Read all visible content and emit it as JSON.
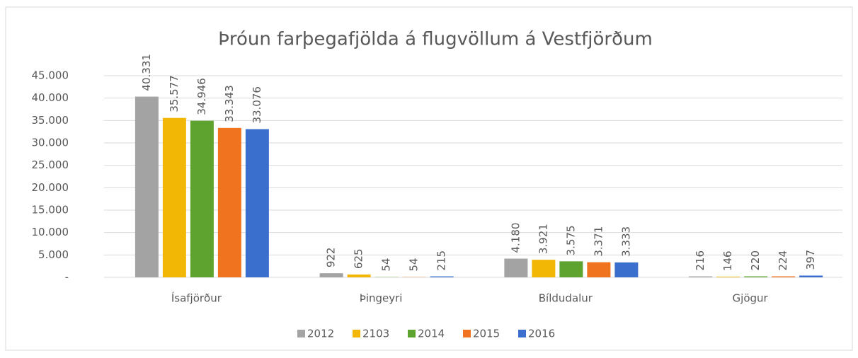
{
  "chart_data": {
    "type": "bar",
    "title": "Þróun farþegafjölda á flugvöllum á Vestfjörðum",
    "categories": [
      "Ísafjörður",
      "Þingeyri",
      "Bíldudalur",
      "Gjögur"
    ],
    "series": [
      {
        "name": "2012",
        "color": "#a3a3a3",
        "values": [
          40331,
          922,
          4180,
          216
        ],
        "value_labels": [
          "40.331",
          "922",
          "4.180",
          "216"
        ]
      },
      {
        "name": "2103",
        "color": "#f2b705",
        "values": [
          35577,
          625,
          3921,
          146
        ],
        "value_labels": [
          "35.577",
          "625",
          "3.921",
          "146"
        ]
      },
      {
        "name": "2014",
        "color": "#5ea22f",
        "values": [
          34946,
          54,
          3575,
          220
        ],
        "value_labels": [
          "34.946",
          "54",
          "3.575",
          "220"
        ]
      },
      {
        "name": "2015",
        "color": "#f0731f",
        "values": [
          33343,
          54,
          3371,
          224
        ],
        "value_labels": [
          "33.343",
          "54",
          "3.371",
          "224"
        ]
      },
      {
        "name": "2016",
        "color": "#3b6fce",
        "values": [
          33076,
          215,
          3333,
          397
        ],
        "value_labels": [
          "33.076",
          "215",
          "3.333",
          "397"
        ]
      }
    ],
    "ylim": [
      0,
      45000
    ],
    "yticks": [
      {
        "value": 0,
        "label": "-"
      },
      {
        "value": 5000,
        "label": "5.000"
      },
      {
        "value": 10000,
        "label": "10.000"
      },
      {
        "value": 15000,
        "label": "15.000"
      },
      {
        "value": 20000,
        "label": "20.000"
      },
      {
        "value": 25000,
        "label": "25.000"
      },
      {
        "value": 30000,
        "label": "30.000"
      },
      {
        "value": 35000,
        "label": "35.000"
      },
      {
        "value": 40000,
        "label": "40.000"
      },
      {
        "value": 45000,
        "label": "45.000"
      }
    ],
    "grid": true,
    "legend": "bottom"
  }
}
